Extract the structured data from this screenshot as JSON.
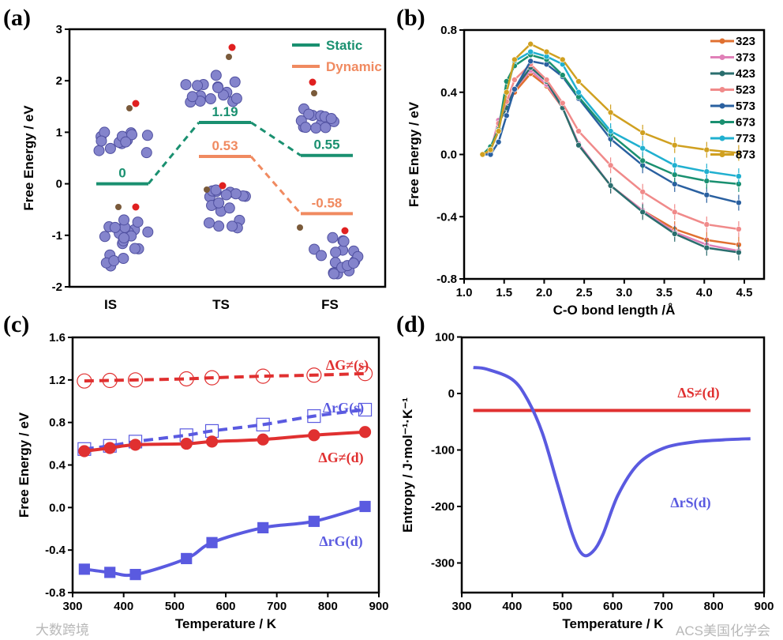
{
  "colors": {
    "static": "#1a9070",
    "dynamic": "#f08a60",
    "red": "#e03030",
    "blue": "#5a5ae0",
    "atom": "#8484cc",
    "carbon": "#7a5a3a",
    "oxygen": "#e02020"
  },
  "watermarks": {
    "left": "大数跨境",
    "right": "ACS美国化学会"
  },
  "chart_data": [
    {
      "panel": "(a)",
      "type": "energy-diagram",
      "ylabel": "Free Energy / eV",
      "ylim": [
        -2,
        3
      ],
      "yticks": [
        "3",
        "2",
        "1",
        "0",
        "-1",
        "-2"
      ],
      "categories": [
        "IS",
        "TS",
        "FS"
      ],
      "series": [
        {
          "name": "Static",
          "values": [
            0,
            1.19,
            0.55
          ],
          "labels": [
            "0",
            "1.19",
            "0.55"
          ]
        },
        {
          "name": "Dynamic",
          "values": [
            0,
            0.53,
            -0.58
          ],
          "labels": [
            "",
            "0.53",
            "-0.58"
          ]
        }
      ],
      "legend": "top-right"
    },
    {
      "panel": "(b)",
      "type": "line",
      "xlabel": "C-O bond length /Å",
      "ylabel": "Free Energy / eV",
      "xlim": [
        1.0,
        4.5
      ],
      "ylim": [
        -0.8,
        0.8
      ],
      "xticks": [
        "1.0",
        "1.5",
        "2.0",
        "2.5",
        "3.0",
        "3.5",
        "4.0",
        "4.5"
      ],
      "yticks": [
        "0.8",
        "0.4",
        "0.0",
        "-0.4",
        "-0.8"
      ],
      "x": [
        1.23,
        1.33,
        1.43,
        1.53,
        1.63,
        1.83,
        2.03,
        2.23,
        2.43,
        2.83,
        3.23,
        3.63,
        4.03,
        4.43
      ],
      "series": [
        {
          "name": "323",
          "color": "#e07030",
          "values": [
            0,
            0.02,
            0.2,
            0.3,
            0.4,
            0.52,
            0.44,
            0.3,
            0.06,
            -0.2,
            -0.36,
            -0.48,
            -0.55,
            -0.58
          ]
        },
        {
          "name": "373",
          "color": "#e080b8",
          "values": [
            0,
            0.02,
            0.22,
            0.32,
            0.42,
            0.54,
            0.45,
            0.3,
            0.07,
            -0.2,
            -0.36,
            -0.5,
            -0.58,
            -0.62
          ]
        },
        {
          "name": "423",
          "color": "#2a6e6e",
          "values": [
            0,
            0.01,
            0.2,
            0.3,
            0.42,
            0.56,
            0.47,
            0.3,
            0.06,
            -0.2,
            -0.37,
            -0.51,
            -0.6,
            -0.63
          ]
        },
        {
          "name": "523",
          "color": "#f08a8a",
          "values": [
            0,
            0.02,
            0.2,
            0.34,
            0.48,
            0.58,
            0.48,
            0.33,
            0.15,
            -0.07,
            -0.24,
            -0.37,
            -0.45,
            -0.48
          ]
        },
        {
          "name": "573",
          "color": "#2a60a0",
          "values": [
            0,
            0,
            0.08,
            0.25,
            0.42,
            0.6,
            0.58,
            0.5,
            0.36,
            0.1,
            -0.07,
            -0.19,
            -0.26,
            -0.31
          ]
        },
        {
          "name": "673",
          "color": "#1a9070",
          "values": [
            0,
            0.05,
            0.16,
            0.47,
            0.57,
            0.64,
            0.61,
            0.51,
            0.37,
            0.13,
            -0.04,
            -0.13,
            -0.17,
            -0.19
          ]
        },
        {
          "name": "773",
          "color": "#20b0d0",
          "values": [
            0,
            0.03,
            0.15,
            0.4,
            0.6,
            0.66,
            0.63,
            0.58,
            0.4,
            0.15,
            0.04,
            -0.07,
            -0.11,
            -0.14
          ]
        },
        {
          "name": "873",
          "color": "#d0a020",
          "values": [
            0,
            0.03,
            0.15,
            0.4,
            0.61,
            0.71,
            0.66,
            0.61,
            0.47,
            0.27,
            0.14,
            0.06,
            0.03,
            0.01
          ]
        }
      ],
      "legend": "top-right"
    },
    {
      "panel": "(c)",
      "type": "line",
      "xlabel": "Temperature / K",
      "ylabel": "Free Energy / eV",
      "xlim": [
        300,
        900
      ],
      "ylim": [
        -0.8,
        1.6
      ],
      "xticks": [
        "300",
        "400",
        "500",
        "600",
        "700",
        "800",
        "900"
      ],
      "yticks": [
        "1.6",
        "1.2",
        "0.8",
        "0.4",
        "0.0",
        "-0.4",
        "-0.8"
      ],
      "x": [
        323,
        373,
        423,
        523,
        573,
        673,
        773,
        873
      ],
      "series": [
        {
          "name": "ΔG≠(s)",
          "color": "#e03030",
          "dash": true,
          "marker": "open-circle",
          "values": [
            1.19,
            1.195,
            1.2,
            1.21,
            1.22,
            1.235,
            1.245,
            1.26
          ]
        },
        {
          "name": "ΔrG(s)",
          "color": "#5a5ae0",
          "dash": true,
          "marker": "open-square",
          "values": [
            0.55,
            0.58,
            0.62,
            0.68,
            0.72,
            0.78,
            0.86,
            0.92
          ]
        },
        {
          "name": "ΔG≠(d)",
          "color": "#e03030",
          "dash": false,
          "marker": "circle",
          "values": [
            0.53,
            0.56,
            0.59,
            0.6,
            0.62,
            0.64,
            0.68,
            0.71
          ]
        },
        {
          "name": "ΔrG(d)",
          "color": "#5a5ae0",
          "dash": false,
          "marker": "square",
          "values": [
            -0.58,
            -0.61,
            -0.63,
            -0.48,
            -0.33,
            -0.19,
            -0.13,
            0.01
          ]
        }
      ]
    },
    {
      "panel": "(d)",
      "type": "line",
      "xlabel": "Temperature / K",
      "ylabel": "Entropy / J·mol⁻¹·K⁻¹",
      "xlim": [
        300,
        900
      ],
      "ylim": [
        -350,
        100
      ],
      "xticks": [
        "300",
        "400",
        "500",
        "600",
        "700",
        "800",
        "900"
      ],
      "yticks": [
        "100",
        "0",
        "-100",
        "-200",
        "-300"
      ],
      "series": [
        {
          "name": "ΔS≠(d)",
          "color": "#e03030",
          "x": [
            323,
            873
          ],
          "values": [
            -30,
            -30
          ]
        },
        {
          "name": "ΔrS(d)",
          "color": "#5a5ae0",
          "x": [
            323,
            350,
            400,
            430,
            460,
            490,
            520,
            540,
            560,
            580,
            610,
            650,
            700,
            760,
            820,
            873
          ],
          "values": [
            46,
            43,
            25,
            -10,
            -70,
            -160,
            -250,
            -285,
            -280,
            -250,
            -180,
            -125,
            -97,
            -86,
            -82,
            -80
          ]
        }
      ]
    }
  ]
}
